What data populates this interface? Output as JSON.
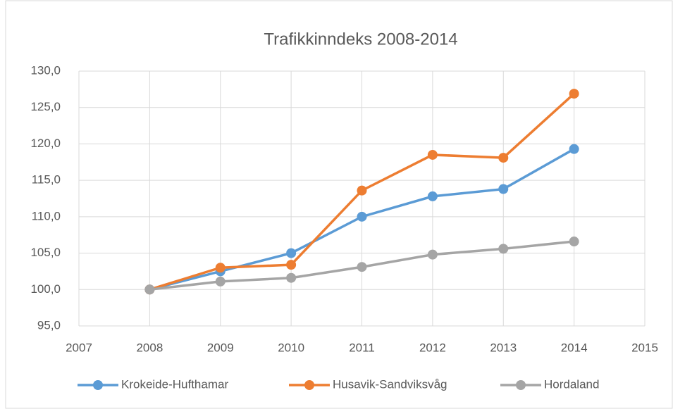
{
  "chart_data": {
    "type": "line",
    "title": "Trafikkinndeks 2008-2014",
    "x": [
      2008,
      2009,
      2010,
      2011,
      2012,
      2013,
      2014
    ],
    "series": [
      {
        "name": "Krokeide-Hufthamar",
        "color": "#5b9bd5",
        "values": [
          100.0,
          102.5,
          105.0,
          110.0,
          112.8,
          113.8,
          119.3
        ]
      },
      {
        "name": "Husavik-Sandviksvåg",
        "color": "#ed7d31",
        "values": [
          100.0,
          103.0,
          103.4,
          113.6,
          118.5,
          118.1,
          126.9
        ]
      },
      {
        "name": "Hordaland",
        "color": "#a5a5a5",
        "values": [
          100.0,
          101.1,
          101.6,
          103.1,
          104.8,
          105.6,
          106.6
        ]
      }
    ],
    "xlim": [
      2007,
      2015
    ],
    "xticks": [
      2007,
      2008,
      2009,
      2010,
      2011,
      2012,
      2013,
      2014,
      2015
    ],
    "ylim": [
      95,
      130
    ],
    "yticks": [
      {
        "value": 95,
        "label": "95,0"
      },
      {
        "value": 100,
        "label": "100,0"
      },
      {
        "value": 105,
        "label": "105,0"
      },
      {
        "value": 110,
        "label": "110,0"
      },
      {
        "value": 115,
        "label": "115,0"
      },
      {
        "value": 120,
        "label": "120,0"
      },
      {
        "value": 125,
        "label": "125,0"
      },
      {
        "value": 130,
        "label": "130,0"
      }
    ],
    "grid": true,
    "legend": "bottom"
  }
}
